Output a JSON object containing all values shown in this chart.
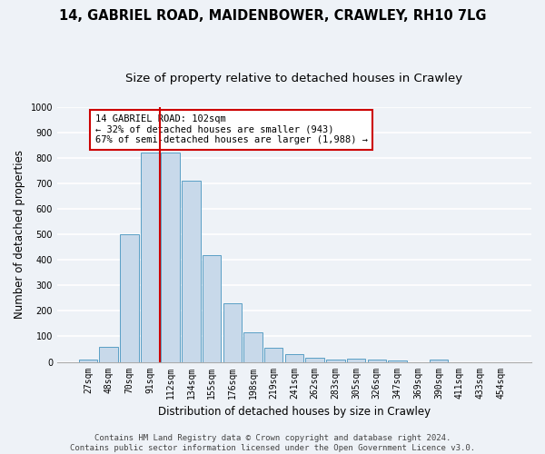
{
  "title_line1": "14, GABRIEL ROAD, MAIDENBOWER, CRAWLEY, RH10 7LG",
  "title_line2": "Size of property relative to detached houses in Crawley",
  "xlabel": "Distribution of detached houses by size in Crawley",
  "ylabel": "Number of detached properties",
  "categories": [
    "27sqm",
    "48sqm",
    "70sqm",
    "91sqm",
    "112sqm",
    "134sqm",
    "155sqm",
    "176sqm",
    "198sqm",
    "219sqm",
    "241sqm",
    "262sqm",
    "283sqm",
    "305sqm",
    "326sqm",
    "347sqm",
    "369sqm",
    "390sqm",
    "411sqm",
    "433sqm",
    "454sqm"
  ],
  "values": [
    8,
    58,
    500,
    820,
    820,
    710,
    418,
    230,
    115,
    55,
    30,
    15,
    10,
    12,
    10,
    5,
    0,
    8,
    0,
    0,
    0
  ],
  "bar_color": "#c8d9ea",
  "bar_edge_color": "#5a9fc5",
  "bar_edge_width": 0.7,
  "vline_color": "#cc0000",
  "vline_x_index": 3.5,
  "annotation_text": "14 GABRIEL ROAD: 102sqm\n← 32% of detached houses are smaller (943)\n67% of semi-detached houses are larger (1,988) →",
  "annotation_box_facecolor": "#ffffff",
  "annotation_box_edgecolor": "#cc0000",
  "ylim": [
    0,
    1000
  ],
  "yticks": [
    0,
    100,
    200,
    300,
    400,
    500,
    600,
    700,
    800,
    900,
    1000
  ],
  "footer_line1": "Contains HM Land Registry data © Crown copyright and database right 2024.",
  "footer_line2": "Contains public sector information licensed under the Open Government Licence v3.0.",
  "background_color": "#eef2f7",
  "grid_color": "#ffffff",
  "title_fontsize": 10.5,
  "subtitle_fontsize": 9.5,
  "axis_label_fontsize": 8.5,
  "tick_fontsize": 7,
  "annotation_fontsize": 7.5,
  "footer_fontsize": 6.5
}
